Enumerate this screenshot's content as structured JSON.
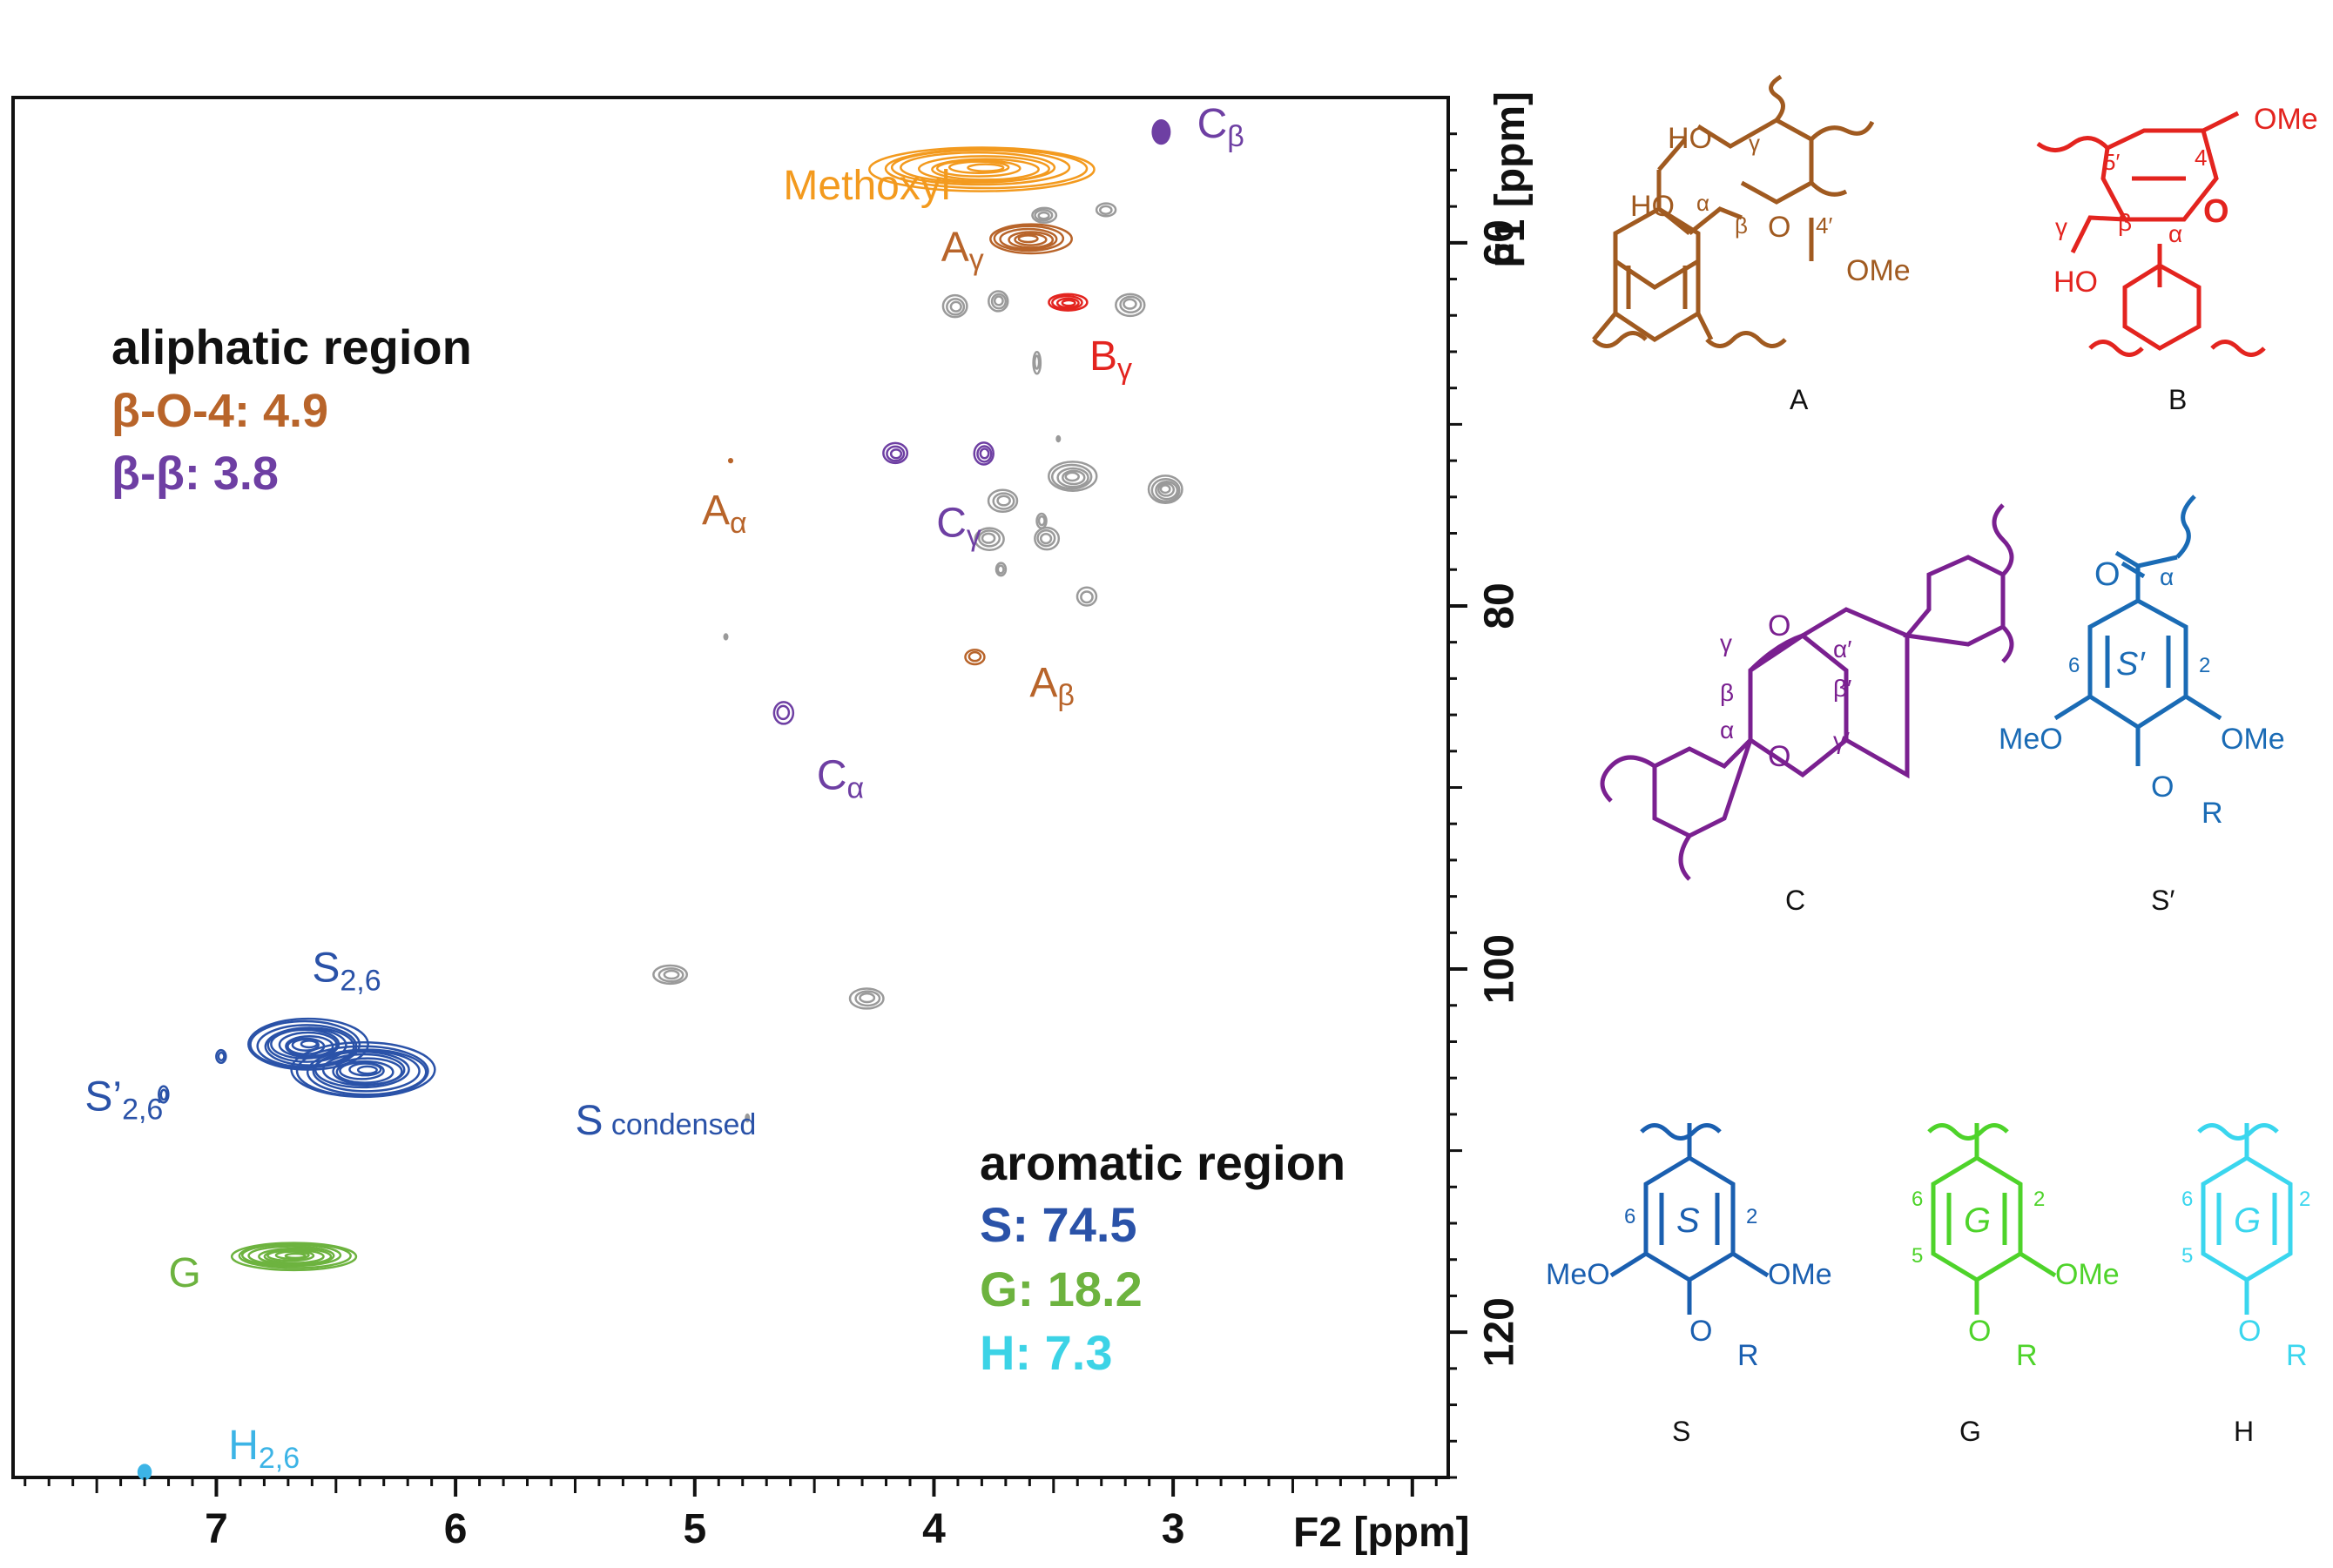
{
  "chart_data": {
    "type": "scatter",
    "subtype": "2D HSQC NMR contour spectrum",
    "xlabel": "F2 [ppm]",
    "ylabel": "F1 [ppm]",
    "xlim": [
      7.85,
      1.85
    ],
    "ylim": [
      52.0,
      128.0
    ],
    "x_ticks": [
      7,
      6,
      5,
      4,
      3
    ],
    "y_ticks": [
      60,
      80,
      100,
      120
    ],
    "peaks": [
      {
        "name": "methoxyl",
        "x": 3.8,
        "y": 55.9,
        "rx": 0.47,
        "ry": 1.2,
        "color": "#f39a1e",
        "rings": 9
      },
      {
        "name": "c-beta",
        "x": 3.05,
        "y": 53.9,
        "rx": 0.04,
        "ry": 0.7,
        "color": "#6e3fa3",
        "rings": 1
      },
      {
        "name": "a-gamma",
        "x": 3.6,
        "y": 59.8,
        "rx": 0.17,
        "ry": 0.8,
        "color": "#b8642a",
        "rings": 6
      },
      {
        "name": "b-gamma",
        "x": 3.44,
        "y": 63.3,
        "rx": 0.08,
        "ry": 0.45,
        "color": "#e3241f",
        "rings": 4
      },
      {
        "name": "c-gamma-1",
        "x": 4.16,
        "y": 71.6,
        "rx": 0.05,
        "ry": 0.55,
        "color": "#6e3fa3",
        "rings": 3
      },
      {
        "name": "c-gamma-2",
        "x": 3.79,
        "y": 71.6,
        "rx": 0.04,
        "ry": 0.6,
        "color": "#6e3fa3",
        "rings": 3
      },
      {
        "name": "a-alpha",
        "x": 4.85,
        "y": 72.0,
        "rx": 0.01,
        "ry": 0.15,
        "color": "#b8642a",
        "rings": 1
      },
      {
        "name": "a-beta",
        "x": 3.83,
        "y": 82.8,
        "rx": 0.04,
        "ry": 0.4,
        "color": "#b8642a",
        "rings": 2
      },
      {
        "name": "c-alpha",
        "x": 4.63,
        "y": 85.9,
        "rx": 0.04,
        "ry": 0.6,
        "color": "#6e3fa3",
        "rings": 2
      },
      {
        "name": "s-2-6",
        "x": 6.62,
        "y": 104.2,
        "rx": 0.25,
        "ry": 1.4,
        "color": "#2a52a8",
        "rings": 11
      },
      {
        "name": "s-condensed",
        "x": 6.38,
        "y": 105.6,
        "rx": 0.3,
        "ry": 1.5,
        "color": "#2a52a8",
        "rings": 11
      },
      {
        "name": "s-prime-2-6",
        "x": 7.22,
        "y": 106.9,
        "rx": 0.02,
        "ry": 0.45,
        "color": "#2a52a8",
        "rings": 2
      },
      {
        "name": "s-prime-2-6-b",
        "x": 6.98,
        "y": 104.8,
        "rx": 0.02,
        "ry": 0.35,
        "color": "#2a52a8",
        "rings": 2
      },
      {
        "name": "g-2",
        "x": 6.68,
        "y": 115.8,
        "rx": 0.26,
        "ry": 0.75,
        "color": "#6db33f",
        "rings": 9
      },
      {
        "name": "h-2-6",
        "x": 7.3,
        "y": 127.7,
        "rx": 0.03,
        "ry": 0.45,
        "color": "#3cb4e6",
        "rings": 1
      },
      {
        "name": "unassigned-1",
        "x": 3.54,
        "y": 58.5,
        "rx": 0.05,
        "ry": 0.4,
        "color": "#9a9a9a",
        "rings": 3
      },
      {
        "name": "unassigned-2",
        "x": 3.28,
        "y": 58.2,
        "rx": 0.04,
        "ry": 0.35,
        "color": "#9a9a9a",
        "rings": 2
      },
      {
        "name": "unassigned-3",
        "x": 3.91,
        "y": 63.5,
        "rx": 0.05,
        "ry": 0.6,
        "color": "#9a9a9a",
        "rings": 3
      },
      {
        "name": "unassigned-4",
        "x": 3.73,
        "y": 63.2,
        "rx": 0.04,
        "ry": 0.55,
        "color": "#9a9a9a",
        "rings": 3
      },
      {
        "name": "unassigned-5",
        "x": 3.18,
        "y": 63.4,
        "rx": 0.06,
        "ry": 0.6,
        "color": "#9a9a9a",
        "rings": 3
      },
      {
        "name": "unassigned-6",
        "x": 3.57,
        "y": 66.6,
        "rx": 0.015,
        "ry": 0.6,
        "color": "#9a9a9a",
        "rings": 2
      },
      {
        "name": "unassigned-7",
        "x": 3.48,
        "y": 70.8,
        "rx": 0.01,
        "ry": 0.2,
        "color": "#9a9a9a",
        "rings": 1
      },
      {
        "name": "unassigned-8",
        "x": 3.42,
        "y": 72.9,
        "rx": 0.1,
        "ry": 0.8,
        "color": "#9a9a9a",
        "rings": 5
      },
      {
        "name": "unassigned-9",
        "x": 3.03,
        "y": 73.6,
        "rx": 0.07,
        "ry": 0.75,
        "color": "#9a9a9a",
        "rings": 5
      },
      {
        "name": "unassigned-10",
        "x": 3.71,
        "y": 74.2,
        "rx": 0.06,
        "ry": 0.6,
        "color": "#9a9a9a",
        "rings": 3
      },
      {
        "name": "unassigned-11",
        "x": 3.55,
        "y": 75.3,
        "rx": 0.02,
        "ry": 0.4,
        "color": "#9a9a9a",
        "rings": 2
      },
      {
        "name": "unassigned-12",
        "x": 3.77,
        "y": 76.3,
        "rx": 0.06,
        "ry": 0.6,
        "color": "#9a9a9a",
        "rings": 3
      },
      {
        "name": "unassigned-13",
        "x": 3.53,
        "y": 76.3,
        "rx": 0.05,
        "ry": 0.6,
        "color": "#9a9a9a",
        "rings": 3
      },
      {
        "name": "unassigned-14",
        "x": 3.72,
        "y": 78.0,
        "rx": 0.02,
        "ry": 0.35,
        "color": "#9a9a9a",
        "rings": 2
      },
      {
        "name": "unassigned-15",
        "x": 3.36,
        "y": 79.5,
        "rx": 0.04,
        "ry": 0.5,
        "color": "#9a9a9a",
        "rings": 2
      },
      {
        "name": "unassigned-16",
        "x": 5.1,
        "y": 100.3,
        "rx": 0.07,
        "ry": 0.5,
        "color": "#9a9a9a",
        "rings": 3
      },
      {
        "name": "unassigned-17",
        "x": 4.28,
        "y": 101.6,
        "rx": 0.07,
        "ry": 0.55,
        "color": "#9a9a9a",
        "rings": 3
      },
      {
        "name": "unassigned-18",
        "x": 4.78,
        "y": 108.2,
        "rx": 0.01,
        "ry": 0.25,
        "color": "#9a9a9a",
        "rings": 1
      },
      {
        "name": "unassigned-19",
        "x": 4.87,
        "y": 81.7,
        "rx": 0.01,
        "ry": 0.2,
        "color": "#9a9a9a",
        "rings": 1
      }
    ],
    "peak_labels": [
      {
        "name": "methoxyl-label",
        "text": "Methoxyl",
        "sub": "",
        "x": 4.63,
        "y": 57.6,
        "color": "#f39a1e"
      },
      {
        "name": "c-beta-label",
        "text": "C",
        "sub": "β",
        "x": 2.9,
        "y": 54.2,
        "color": "#6e3fa3"
      },
      {
        "name": "a-gamma-label",
        "text": "A",
        "sub": "γ",
        "x": 3.97,
        "y": 61.0,
        "color": "#b8642a"
      },
      {
        "name": "b-gamma-label",
        "text": "B",
        "sub": "γ",
        "x": 3.35,
        "y": 67.0,
        "color": "#e3241f"
      },
      {
        "name": "a-alpha-label",
        "text": "A",
        "sub": "α",
        "x": 4.97,
        "y": 75.5,
        "color": "#b8642a"
      },
      {
        "name": "c-gamma-label",
        "text": "C",
        "sub": "γ",
        "x": 3.99,
        "y": 76.2,
        "color": "#6e3fa3"
      },
      {
        "name": "a-beta-label",
        "text": "A",
        "sub": "β",
        "x": 3.6,
        "y": 85.0,
        "color": "#b8642a"
      },
      {
        "name": "c-alpha-label",
        "text": "C",
        "sub": "α",
        "x": 4.49,
        "y": 90.1,
        "color": "#6e3fa3"
      },
      {
        "name": "s-2-6-label",
        "text": "S",
        "sub": "2,6",
        "x": 6.6,
        "y": 100.7,
        "color": "#2a52a8"
      },
      {
        "name": "s-prime-label",
        "text": "S’",
        "sub": "2,6",
        "x": 7.55,
        "y": 107.8,
        "color": "#2a52a8"
      },
      {
        "name": "s-condensed-label",
        "text": "S",
        "sub": " condensed",
        "x": 5.5,
        "y": 109.1,
        "color": "#2a52a8"
      },
      {
        "name": "g-label",
        "text": "G",
        "sub": "",
        "x": 7.2,
        "y": 117.5,
        "color": "#6db33f"
      },
      {
        "name": "h-2-6-label",
        "text": "H",
        "sub": "2,6",
        "x": 6.95,
        "y": 127.0,
        "color": "#3cb4e6"
      }
    ],
    "annotations": {
      "aliphatic": {
        "title": "aliphatic region",
        "beta_o_4": "β-O-4: 4.9",
        "beta_beta": "β-β: 3.8"
      },
      "aromatic": {
        "title": "aromatic region",
        "s": "S: 74.5",
        "g": "G: 18.2",
        "h": "H: 7.3"
      }
    },
    "colors": {
      "beta_o_4": "#b8642a",
      "beta_beta": "#6e3fa3",
      "s": "#2a52a8",
      "g": "#6db33f",
      "h": "#3cd3e6"
    }
  },
  "structures": {
    "A": {
      "caption": "A",
      "labels": {
        "ho1": "HO",
        "gamma": "γ",
        "ho2": "HO",
        "alpha": "α",
        "beta": "β",
        "o": "O",
        "four_prime": "4′",
        "ome": "OMe"
      },
      "color": "#a05a20"
    },
    "B": {
      "caption": "B",
      "labels": {
        "ome": "OMe",
        "five_prime": "5′",
        "four_prime": "4′",
        "gamma": "γ",
        "beta": "β",
        "alpha": "α",
        "o": "O",
        "ho": "HO"
      },
      "color": "#e3241f"
    },
    "C": {
      "caption": "C",
      "labels": {
        "o1": "O",
        "o2": "O",
        "gamma": "γ",
        "beta": "β",
        "alpha": "α",
        "alpha_p": "α′",
        "beta_p": "β′",
        "gamma_p": "γ′"
      },
      "color": "#7a2090"
    },
    "S_prime": {
      "caption": "S′",
      "labels": {
        "o": "O",
        "alpha": "α",
        "six": "6",
        "two": "2",
        "ring": "S′",
        "meo": "MeO",
        "ome": "OMe",
        "or": "O",
        "r": "R"
      },
      "color": "#1a6bb5"
    },
    "S": {
      "caption": "S",
      "labels": {
        "six": "6",
        "two": "2",
        "ring": "S",
        "meo": "MeO",
        "ome": "OMe",
        "or": "O",
        "r": "R"
      },
      "color": "#1a5fb0"
    },
    "G": {
      "caption": "G",
      "labels": {
        "six": "6",
        "two": "2",
        "five": "5",
        "ring": "G",
        "ome": "OMe",
        "or": "O",
        "r": "R"
      },
      "color": "#4ed32a"
    },
    "H": {
      "caption": "H",
      "labels": {
        "six": "6",
        "two": "2",
        "five": "5",
        "ring": "G",
        "or": "O",
        "r": "R"
      },
      "color": "#3ad6ee"
    }
  }
}
